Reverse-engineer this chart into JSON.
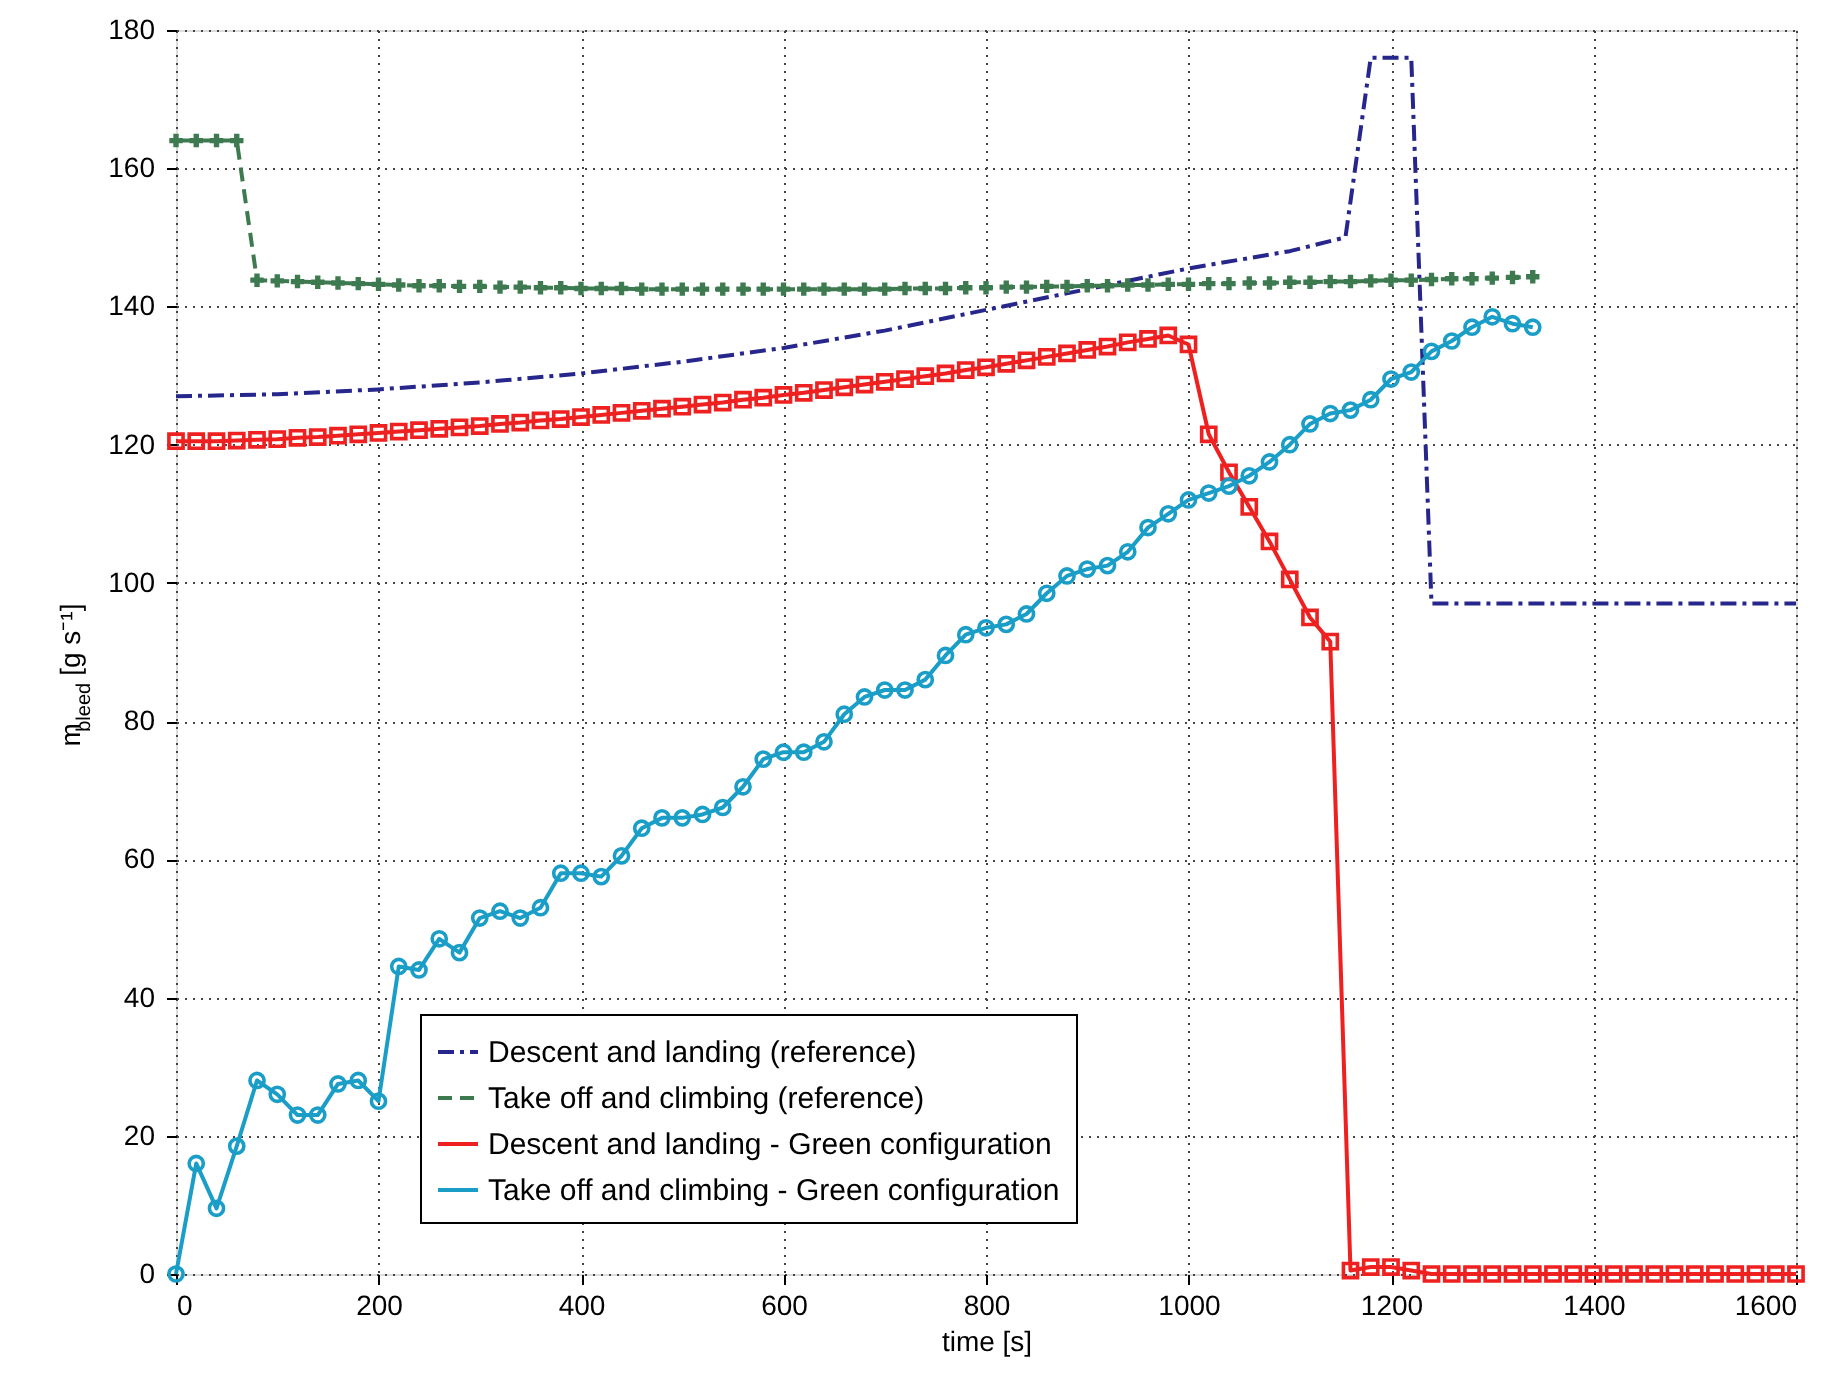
{
  "chart_data": {
    "type": "line",
    "xlabel": "time [s]",
    "ylabel": "m$_{bleed}$ [g s⁻¹]",
    "xlim": [
      0,
      1600
    ],
    "xticks": [
      0,
      200,
      400,
      600,
      800,
      1000,
      1200,
      1400,
      1600
    ],
    "ylim": [
      0,
      180
    ],
    "yticks": [
      0,
      20,
      40,
      60,
      80,
      100,
      120,
      140,
      160,
      180
    ],
    "grid": true,
    "legend": "bottom",
    "series": [
      {
        "name": "Descent and landing (reference)",
        "color": "#26268c",
        "line_style": "dashdot",
        "marker": "none",
        "x": [
          0,
          100,
          200,
          300,
          400,
          500,
          600,
          700,
          800,
          900,
          1000,
          1100,
          1155,
          1180,
          1220,
          1240,
          1600
        ],
        "values": [
          127,
          127.3,
          128,
          129,
          130.3,
          132,
          134,
          136.5,
          139.5,
          142.5,
          145.5,
          148,
          150,
          176,
          176,
          97,
          97
        ]
      },
      {
        "name": "Take off and climbing (reference)",
        "color": "#3d7a4f",
        "line_style": "dashed",
        "marker": "cross",
        "x": [
          0,
          20,
          40,
          60,
          80,
          100,
          120,
          140,
          160,
          180,
          200,
          220,
          240,
          260,
          280,
          300,
          320,
          340,
          360,
          380,
          400,
          420,
          440,
          460,
          480,
          500,
          520,
          540,
          560,
          580,
          600,
          620,
          640,
          660,
          680,
          700,
          720,
          740,
          760,
          780,
          800,
          820,
          840,
          860,
          880,
          900,
          920,
          940,
          960,
          980,
          1000,
          1020,
          1040,
          1060,
          1080,
          1100,
          1120,
          1140,
          1160,
          1180,
          1200,
          1220,
          1240,
          1260,
          1280,
          1300,
          1320,
          1340
        ],
        "values": [
          164,
          164,
          164,
          164,
          143.8,
          143.7,
          143.6,
          143.5,
          143.4,
          143.3,
          143.2,
          143.1,
          143,
          143,
          142.9,
          142.9,
          142.8,
          142.8,
          142.7,
          142.7,
          142.6,
          142.6,
          142.6,
          142.5,
          142.5,
          142.5,
          142.5,
          142.5,
          142.5,
          142.5,
          142.5,
          142.5,
          142.5,
          142.5,
          142.5,
          142.5,
          142.6,
          142.6,
          142.6,
          142.7,
          142.7,
          142.8,
          142.8,
          142.9,
          142.9,
          143,
          143,
          143.1,
          143.1,
          143.2,
          143.2,
          143.3,
          143.3,
          143.4,
          143.4,
          143.5,
          143.5,
          143.6,
          143.6,
          143.7,
          143.8,
          143.8,
          143.9,
          144,
          144,
          144.1,
          144.2,
          144.3
        ]
      },
      {
        "name": "Descent and landing - Green configuration",
        "color": "#ee2020",
        "line_style": "solid",
        "marker": "square",
        "x": [
          0,
          20,
          40,
          60,
          80,
          100,
          120,
          140,
          160,
          180,
          200,
          220,
          240,
          260,
          280,
          300,
          320,
          340,
          360,
          380,
          400,
          420,
          440,
          460,
          480,
          500,
          520,
          540,
          560,
          580,
          600,
          620,
          640,
          660,
          680,
          700,
          720,
          740,
          760,
          780,
          800,
          820,
          840,
          860,
          880,
          900,
          920,
          940,
          960,
          980,
          1000,
          1020,
          1040,
          1060,
          1080,
          1100,
          1120,
          1140,
          1160,
          1180,
          1200,
          1220,
          1240,
          1260,
          1280,
          1300,
          1320,
          1340,
          1360,
          1380,
          1400,
          1420,
          1440,
          1460,
          1480,
          1500,
          1520,
          1540,
          1560,
          1580,
          1600
        ],
        "values": [
          120.5,
          120.5,
          120.5,
          120.6,
          120.7,
          120.8,
          121,
          121.1,
          121.3,
          121.5,
          121.7,
          121.9,
          122.1,
          122.3,
          122.5,
          122.7,
          123,
          123.2,
          123.5,
          123.7,
          124,
          124.3,
          124.6,
          124.9,
          125.2,
          125.5,
          125.8,
          126.1,
          126.5,
          126.8,
          127.2,
          127.5,
          127.9,
          128.3,
          128.7,
          129.1,
          129.5,
          129.9,
          130.3,
          130.8,
          131.2,
          131.7,
          132.2,
          132.7,
          133.2,
          133.7,
          134.2,
          134.8,
          135.3,
          135.8,
          134.5,
          121.5,
          116,
          111,
          106,
          100.5,
          95,
          91.5,
          0.5,
          1,
          1,
          0.5,
          0,
          0,
          0,
          0,
          0,
          0,
          0,
          0,
          0,
          0,
          0,
          0,
          0,
          0,
          0,
          0,
          0,
          0,
          0
        ]
      },
      {
        "name": "Take off and climbing - Green configuration",
        "color": "#1a9ec8",
        "line_style": "solid",
        "marker": "circle",
        "x": [
          0,
          20,
          40,
          60,
          80,
          100,
          120,
          140,
          160,
          180,
          200,
          220,
          240,
          260,
          280,
          300,
          320,
          340,
          360,
          380,
          400,
          420,
          440,
          460,
          480,
          500,
          520,
          540,
          560,
          580,
          600,
          620,
          640,
          660,
          680,
          700,
          720,
          740,
          760,
          780,
          800,
          820,
          840,
          860,
          880,
          900,
          920,
          940,
          960,
          980,
          1000,
          1020,
          1040,
          1060,
          1080,
          1100,
          1120,
          1140,
          1160,
          1180,
          1200,
          1220,
          1240,
          1260,
          1280,
          1300,
          1320,
          1340
        ],
        "values": [
          0,
          16,
          9.5,
          18.5,
          28,
          26,
          23,
          23,
          27.5,
          28,
          25,
          44.5,
          44,
          48.5,
          46.5,
          51.5,
          52.5,
          51.5,
          53,
          58,
          58,
          57.5,
          60.5,
          64.5,
          66,
          66,
          66.5,
          67.5,
          70.5,
          74.5,
          75.5,
          75.5,
          77,
          81,
          83.5,
          84.5,
          84.5,
          86,
          89.5,
          92.5,
          93.5,
          94,
          95.5,
          98.5,
          101,
          102,
          102.5,
          104.5,
          108,
          110,
          112,
          113,
          114,
          115.5,
          117.5,
          120,
          123,
          124.5,
          125,
          126.5,
          129.5,
          130.5,
          133.5,
          135,
          137,
          138.5,
          137.5,
          137
        ]
      }
    ]
  }
}
